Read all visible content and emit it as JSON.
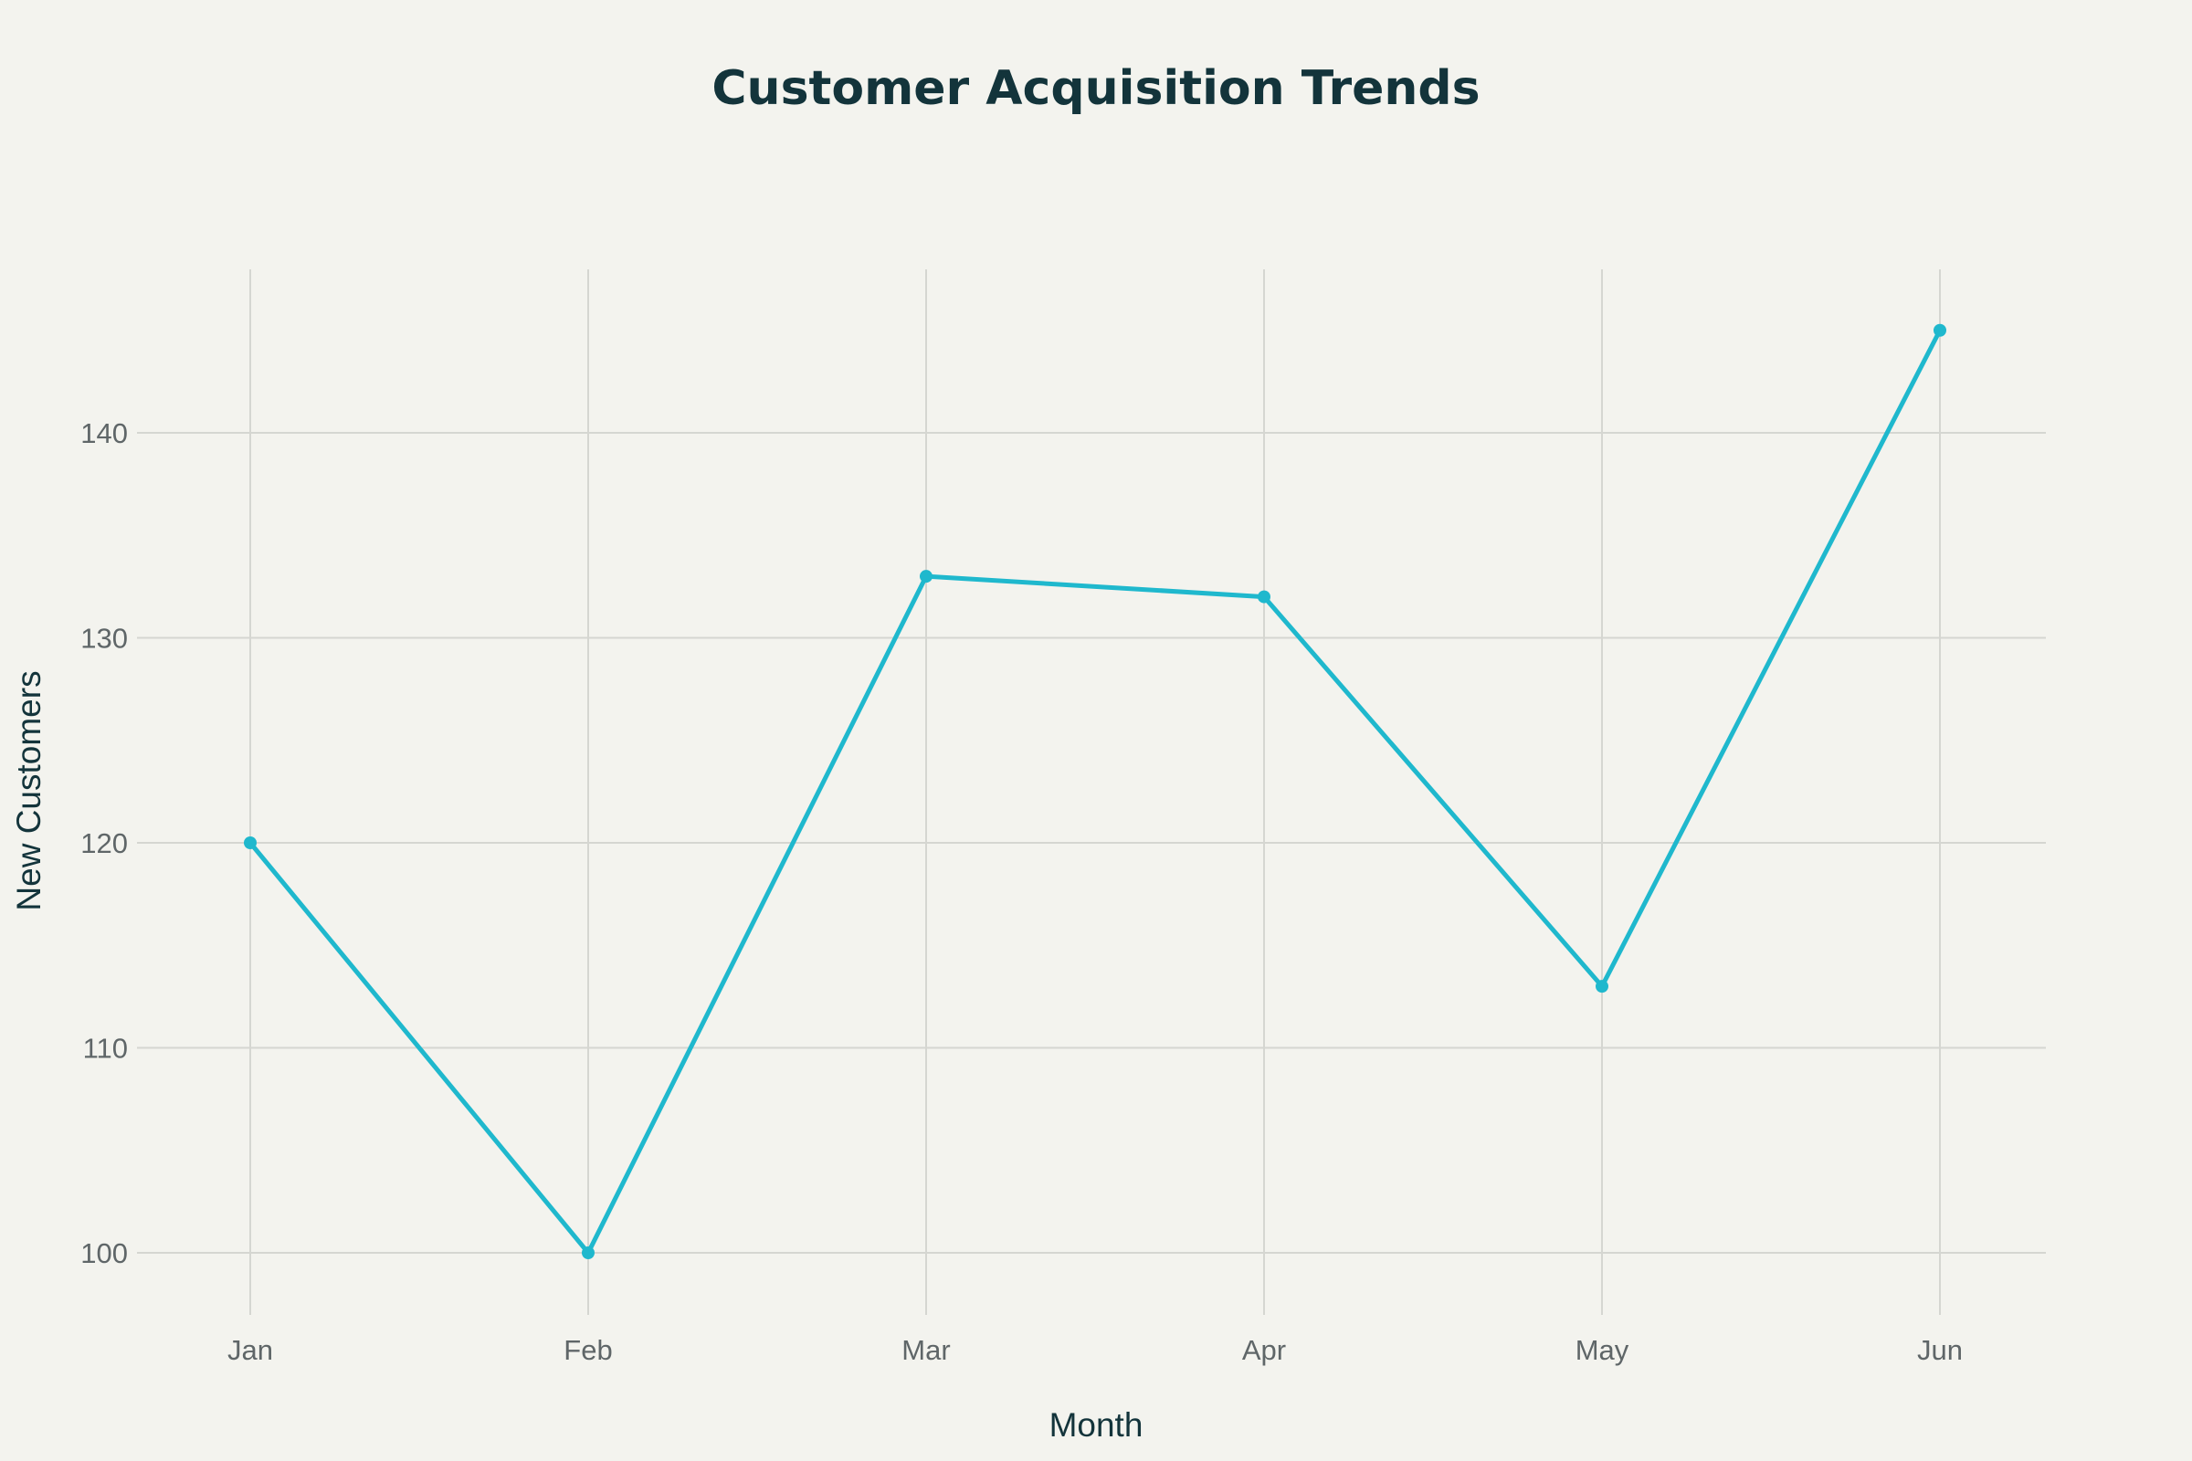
{
  "chart_data": {
    "type": "line",
    "title": "Customer Acquisition Trends",
    "xlabel": "Month",
    "ylabel": "New Customers",
    "categories": [
      "Jan",
      "Feb",
      "Mar",
      "Apr",
      "May",
      "Jun"
    ],
    "series": [
      {
        "values": [
          120,
          100,
          133,
          132,
          113,
          145
        ]
      }
    ],
    "ylim": [
      96.5,
      148.2
    ],
    "yticks": [
      100,
      110,
      120,
      130,
      140
    ],
    "grid": true,
    "legend": "none",
    "colors": {
      "line": "#1fb8cd",
      "title": "#13343b",
      "tick": "#5f6668",
      "grid": "#d5d6d1",
      "background": "#f3f3ee"
    }
  }
}
